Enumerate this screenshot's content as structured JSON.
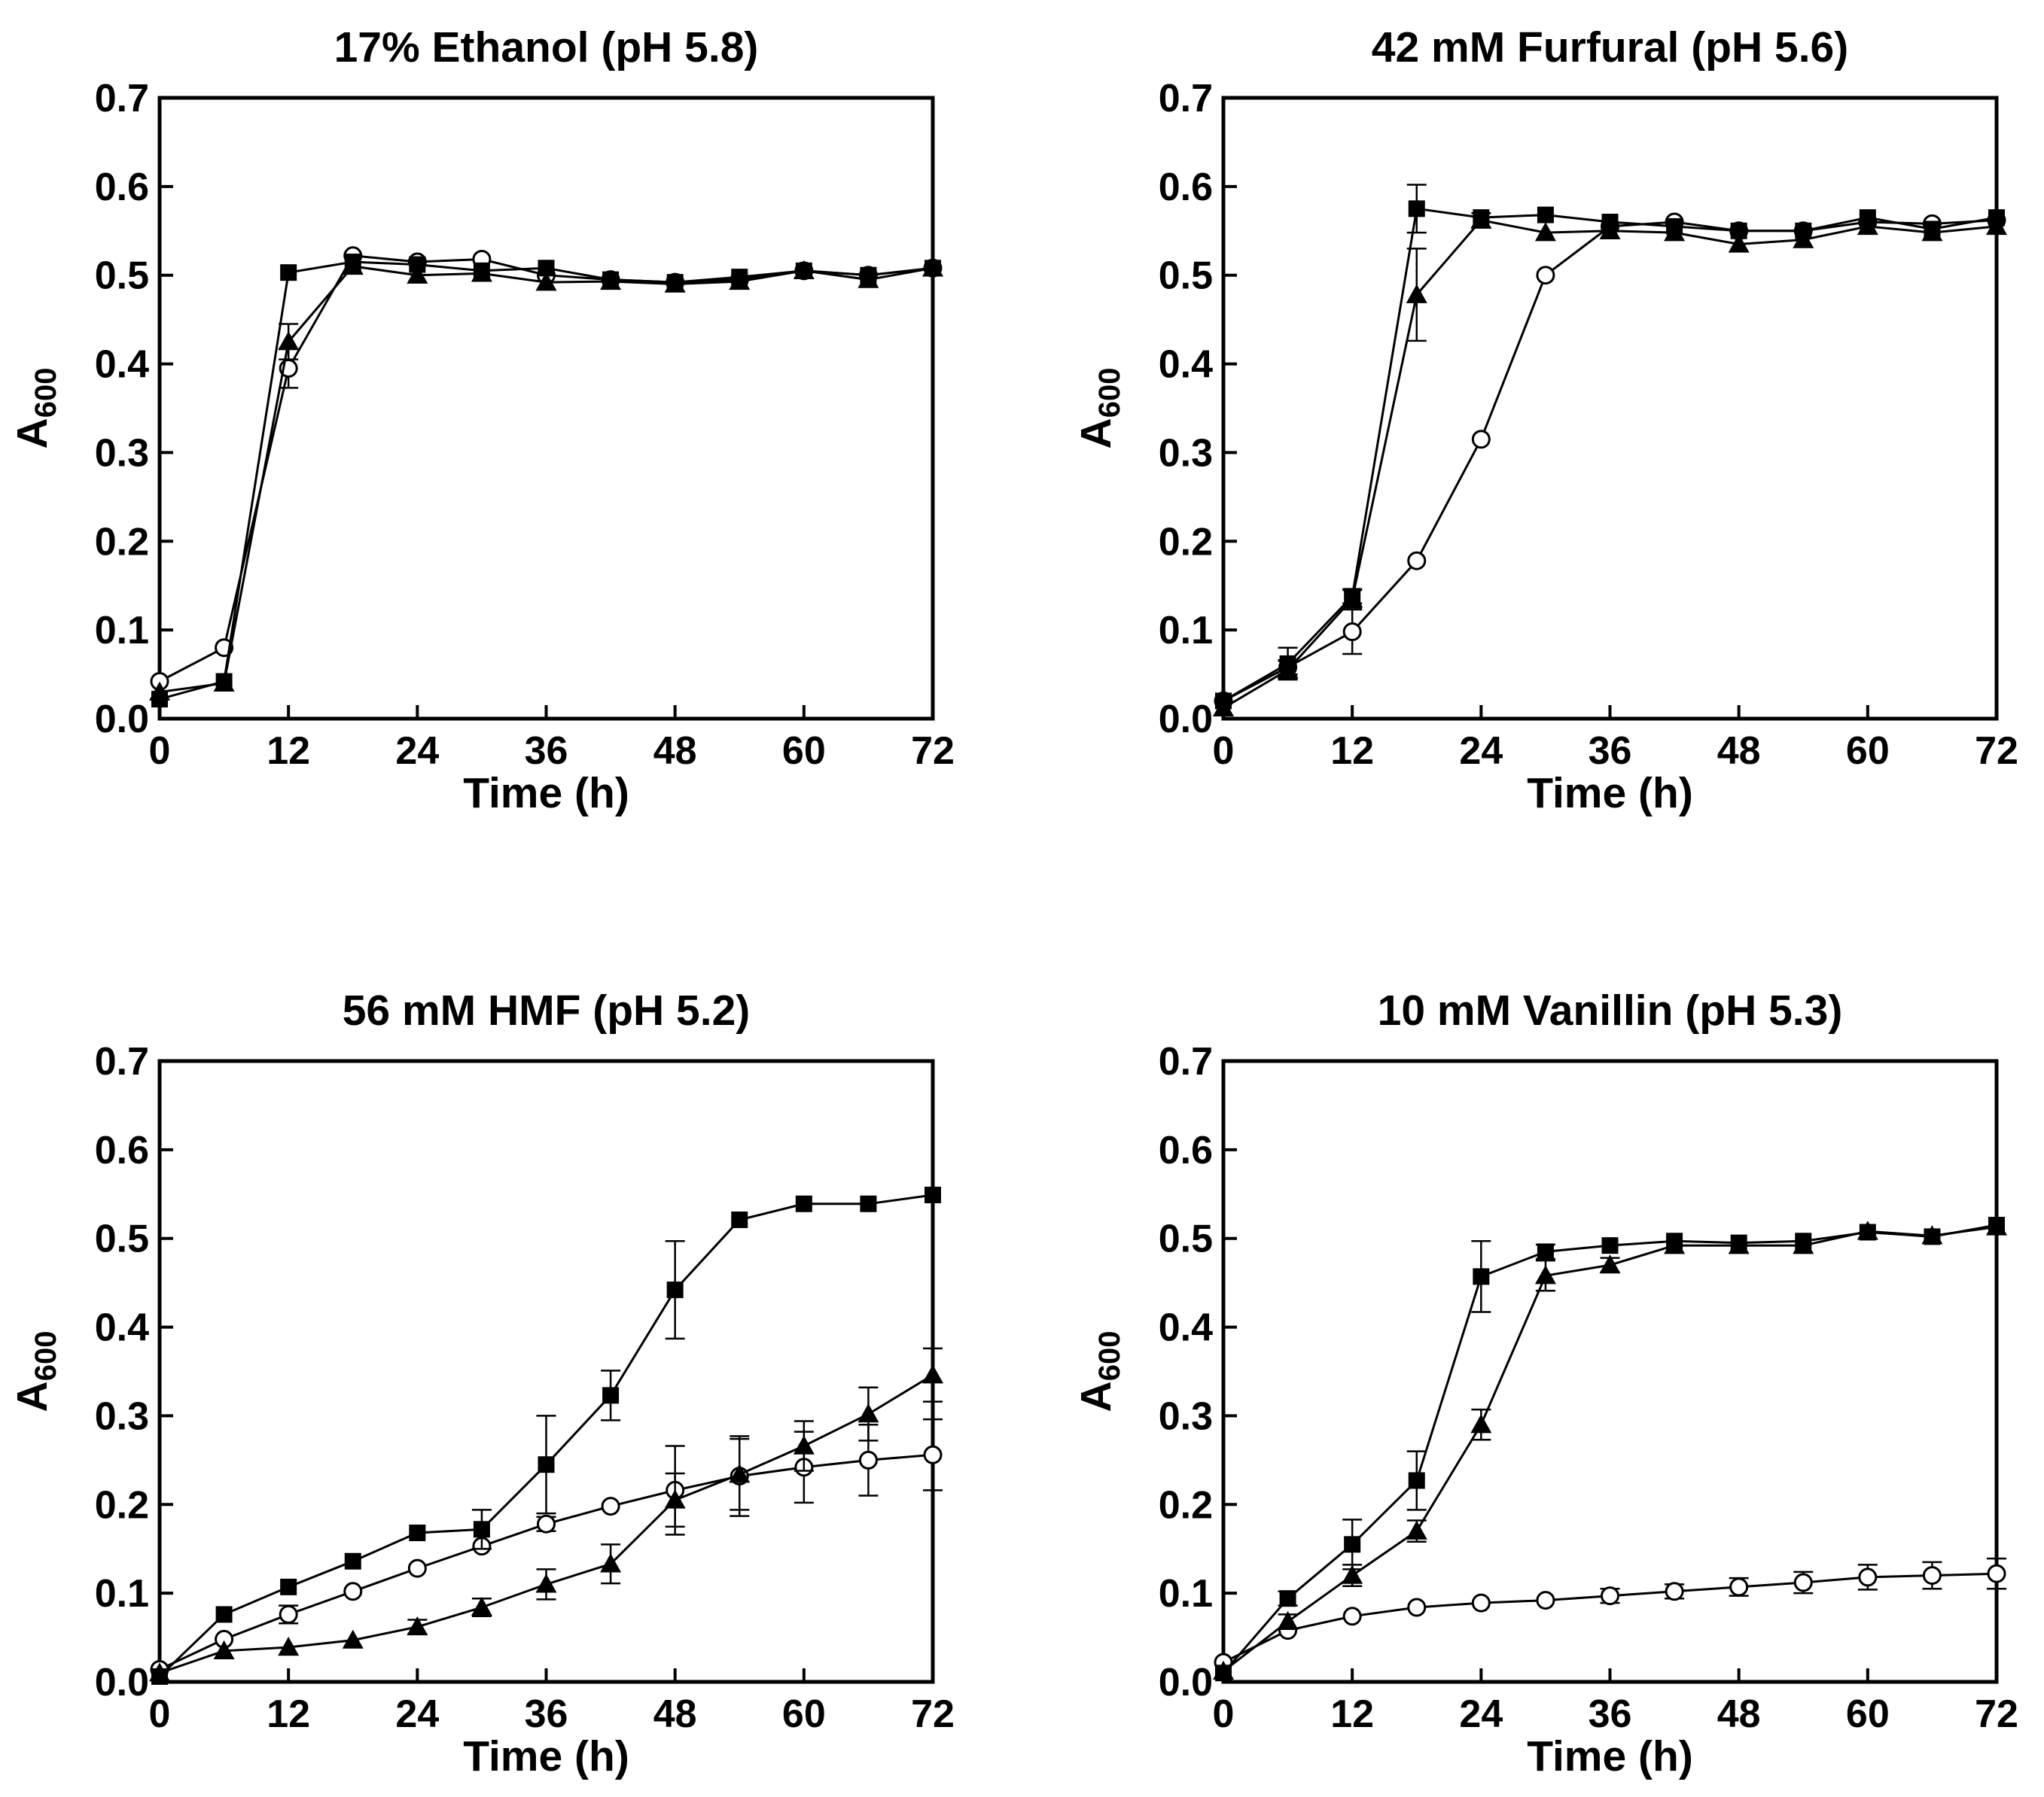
{
  "chart_data": [
    {
      "type": "line",
      "title": "17% Ethanol (pH 5.8)",
      "xlabel": "Time (h)",
      "ylabel": "A",
      "ylabel_sub": "600",
      "xlim": [
        0,
        72
      ],
      "ylim": [
        0.0,
        0.7
      ],
      "xticks": [
        "0",
        "12",
        "24",
        "36",
        "48",
        "60",
        "72"
      ],
      "yticks": [
        "0.0",
        "0.1",
        "0.2",
        "0.3",
        "0.4",
        "0.5",
        "0.6",
        "0.7"
      ],
      "x": [
        0,
        6,
        12,
        18,
        24,
        30,
        36,
        42,
        48,
        54,
        60,
        66,
        72
      ],
      "series": [
        {
          "marker": "open-circle",
          "values": [
            0.042,
            0.08,
            0.395,
            0.522,
            0.515,
            0.518,
            0.5,
            0.495,
            0.492,
            0.495,
            0.505,
            0.5,
            0.508
          ],
          "errors": [
            0.003,
            0.004,
            0.022,
            0.005,
            0.005,
            0.005,
            0.005,
            0.004,
            0.005,
            0.005,
            0.004,
            0.005,
            0.005
          ]
        },
        {
          "marker": "filled-triangle",
          "values": [
            0.03,
            0.04,
            0.425,
            0.51,
            0.5,
            0.502,
            0.492,
            0.493,
            0.49,
            0.493,
            0.505,
            0.495,
            0.508
          ],
          "errors": [
            0.003,
            0.003,
            0.02,
            0.005,
            0.005,
            0.005,
            0.005,
            0.004,
            0.005,
            0.005,
            0.004,
            0.005,
            0.005
          ]
        },
        {
          "marker": "filled-square",
          "values": [
            0.022,
            0.042,
            0.503,
            0.515,
            0.512,
            0.505,
            0.508,
            0.495,
            0.492,
            0.498,
            0.505,
            0.5,
            0.508
          ],
          "errors": [
            0.003,
            0.003,
            0.005,
            0.005,
            0.005,
            0.005,
            0.005,
            0.004,
            0.005,
            0.005,
            0.004,
            0.005,
            0.005
          ]
        }
      ]
    },
    {
      "type": "line",
      "title": "42 mM Furfural (pH 5.6)",
      "xlabel": "Time (h)",
      "ylabel": "A",
      "ylabel_sub": "600",
      "xlim": [
        0,
        72
      ],
      "ylim": [
        0.0,
        0.7
      ],
      "xticks": [
        "0",
        "12",
        "24",
        "36",
        "48",
        "60",
        "72"
      ],
      "yticks": [
        "0.0",
        "0.1",
        "0.2",
        "0.3",
        "0.4",
        "0.5",
        "0.6",
        "0.7"
      ],
      "x": [
        0,
        6,
        12,
        18,
        24,
        30,
        36,
        42,
        48,
        54,
        60,
        66,
        72
      ],
      "series": [
        {
          "marker": "open-circle",
          "values": [
            0.02,
            0.058,
            0.098,
            0.178,
            0.315,
            0.5,
            0.555,
            0.56,
            0.55,
            0.55,
            0.56,
            0.558,
            0.562
          ],
          "errors": [
            0.005,
            0.008,
            0.025,
            0.005,
            0.005,
            0.005,
            0.006,
            0.005,
            0.005,
            0.005,
            0.005,
            0.005,
            0.005
          ]
        },
        {
          "marker": "filled-triangle",
          "values": [
            0.012,
            0.055,
            0.135,
            0.478,
            0.562,
            0.548,
            0.55,
            0.548,
            0.535,
            0.54,
            0.555,
            0.548,
            0.555
          ],
          "errors": [
            0.004,
            0.01,
            0.01,
            0.052,
            0.008,
            0.005,
            0.005,
            0.005,
            0.005,
            0.005,
            0.005,
            0.005,
            0.005
          ]
        },
        {
          "marker": "filled-square",
          "values": [
            0.02,
            0.062,
            0.138,
            0.575,
            0.565,
            0.568,
            0.56,
            0.555,
            0.55,
            0.55,
            0.565,
            0.552,
            0.565
          ],
          "errors": [
            0.004,
            0.018,
            0.008,
            0.027,
            0.006,
            0.006,
            0.005,
            0.005,
            0.005,
            0.005,
            0.005,
            0.005,
            0.005
          ]
        }
      ]
    },
    {
      "type": "line",
      "title": "56 mM HMF (pH 5.2)",
      "xlabel": "Time (h)",
      "ylabel": "A",
      "ylabel_sub": "600",
      "xlim": [
        0,
        72
      ],
      "ylim": [
        0.0,
        0.7
      ],
      "xticks": [
        "0",
        "12",
        "24",
        "36",
        "48",
        "60",
        "72"
      ],
      "yticks": [
        "0.0",
        "0.1",
        "0.2",
        "0.3",
        "0.4",
        "0.5",
        "0.6",
        "0.7"
      ],
      "x": [
        0,
        6,
        12,
        18,
        24,
        30,
        36,
        42,
        48,
        54,
        60,
        66,
        72
      ],
      "series": [
        {
          "marker": "open-circle",
          "values": [
            0.014,
            0.048,
            0.076,
            0.102,
            0.128,
            0.153,
            0.178,
            0.198,
            0.216,
            0.232,
            0.242,
            0.25,
            0.256
          ],
          "errors": [
            0.003,
            0.005,
            0.01,
            0.005,
            0.005,
            0.006,
            0.008,
            0.006,
            0.05,
            0.045,
            0.04,
            0.04,
            0.04
          ]
        },
        {
          "marker": "filled-triangle",
          "values": [
            0.01,
            0.035,
            0.039,
            0.047,
            0.062,
            0.084,
            0.11,
            0.133,
            0.205,
            0.234,
            0.266,
            0.302,
            0.346
          ],
          "errors": [
            0.003,
            0.005,
            0.005,
            0.006,
            0.008,
            0.01,
            0.017,
            0.022,
            0.03,
            0.04,
            0.028,
            0.03,
            0.03
          ]
        },
        {
          "marker": "filled-square",
          "values": [
            0.006,
            0.076,
            0.107,
            0.136,
            0.168,
            0.172,
            0.245,
            0.323,
            0.442,
            0.521,
            0.539,
            0.539,
            0.549
          ],
          "errors": [
            0.003,
            0.005,
            0.006,
            0.006,
            0.006,
            0.022,
            0.055,
            0.028,
            0.055,
            0.006,
            0.006,
            0.006,
            0.006
          ]
        }
      ]
    },
    {
      "type": "line",
      "title": "10 mM Vanillin (pH 5.3)",
      "xlabel": "Time (h)",
      "ylabel": "A",
      "ylabel_sub": "600",
      "xlim": [
        0,
        72
      ],
      "ylim": [
        0.0,
        0.7
      ],
      "xticks": [
        "0",
        "12",
        "24",
        "36",
        "48",
        "60",
        "72"
      ],
      "yticks": [
        "0.0",
        "0.1",
        "0.2",
        "0.3",
        "0.4",
        "0.5",
        "0.6",
        "0.7"
      ],
      "x": [
        0,
        6,
        12,
        18,
        24,
        30,
        36,
        42,
        48,
        54,
        60,
        66,
        72
      ],
      "series": [
        {
          "marker": "open-circle",
          "values": [
            0.022,
            0.058,
            0.074,
            0.084,
            0.089,
            0.092,
            0.097,
            0.102,
            0.107,
            0.112,
            0.118,
            0.12,
            0.122
          ],
          "errors": [
            0.003,
            0.005,
            0.005,
            0.005,
            0.005,
            0.006,
            0.008,
            0.008,
            0.01,
            0.012,
            0.014,
            0.015,
            0.017
          ]
        },
        {
          "marker": "filled-triangle",
          "values": [
            0.012,
            0.068,
            0.12,
            0.17,
            0.29,
            0.458,
            0.47,
            0.492,
            0.492,
            0.492,
            0.508,
            0.503,
            0.513
          ],
          "errors": [
            0.003,
            0.008,
            0.012,
            0.012,
            0.017,
            0.017,
            0.008,
            0.006,
            0.006,
            0.006,
            0.006,
            0.006,
            0.006
          ]
        },
        {
          "marker": "filled-square",
          "values": [
            0.01,
            0.094,
            0.155,
            0.227,
            0.457,
            0.485,
            0.492,
            0.497,
            0.495,
            0.497,
            0.507,
            0.502,
            0.515
          ],
          "errors": [
            0.003,
            0.008,
            0.028,
            0.033,
            0.04,
            0.008,
            0.006,
            0.006,
            0.006,
            0.006,
            0.006,
            0.006,
            0.006
          ]
        }
      ]
    }
  ]
}
